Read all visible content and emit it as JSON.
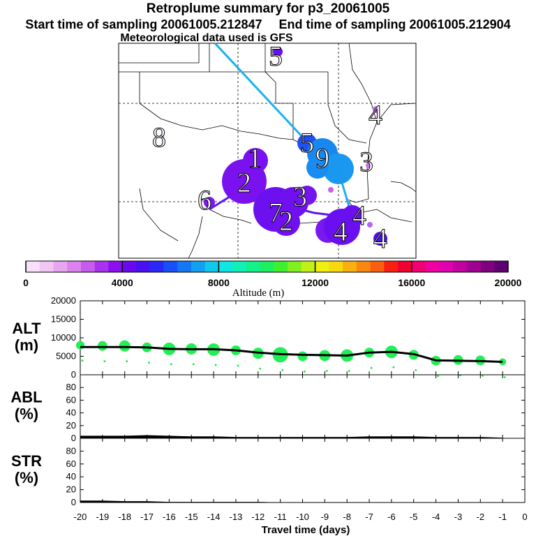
{
  "title": "Retroplume summary for p3_20061005",
  "start_label": "Start time of sampling 20061005.212847",
  "end_label": "End time of sampling 20061005.212904",
  "met_label": "Meteorological data used is GFS",
  "map": {
    "receptor_label": "5",
    "day_labels": [
      "1",
      "2",
      "3",
      "4",
      "5",
      "6",
      "7",
      "8",
      "9",
      "4",
      "4",
      "4",
      "3",
      "2"
    ]
  },
  "colorbar": {
    "xlabel": "Altitude (m)",
    "min": 0,
    "max": 20000,
    "tick_labels": [
      "0",
      "4000",
      "8000",
      "12000",
      "16000",
      "20000"
    ],
    "colors": [
      "#f8e0f8",
      "#f2c6f4",
      "#e8a6f0",
      "#dc82ee",
      "#c85aee",
      "#a832f0",
      "#8a10f0",
      "#6a08f2",
      "#4a10f4",
      "#2a28f8",
      "#1850f8",
      "#1478f4",
      "#12a0f0",
      "#10c8ec",
      "#10e6e4",
      "#12f0b8",
      "#14f08a",
      "#1cf060",
      "#40f030",
      "#80f020",
      "#c0f018",
      "#f0f010",
      "#f8d810",
      "#f8b010",
      "#f88810",
      "#f86010",
      "#f82010",
      "#f00030",
      "#f00070",
      "#f000a0",
      "#e000b0",
      "#c000a0",
      "#a00090",
      "#800080",
      "#600070"
    ]
  },
  "chart_data": [
    {
      "type": "scatter",
      "panel": "ALT",
      "ylabel": "ALT\n(m)",
      "ylabel_lines": [
        "ALT",
        "(m)"
      ],
      "xlim": [
        -20,
        0
      ],
      "ylim": [
        0,
        20000
      ],
      "yticks": [
        "0",
        "5000",
        "10000",
        "15000",
        "20000"
      ],
      "series": [
        {
          "name": "median altitude",
          "x": [
            -20,
            -19,
            -18,
            -17,
            -16,
            -15,
            -14,
            -13,
            -12,
            -11,
            -10,
            -9,
            -8,
            -7,
            -6,
            -5,
            -4,
            -3,
            -2,
            -1
          ],
          "y": [
            7500,
            7500,
            7500,
            7400,
            7000,
            6900,
            6900,
            6600,
            6000,
            5600,
            5400,
            5300,
            5200,
            6000,
            6200,
            5600,
            3900,
            3800,
            3700,
            3500
          ]
        },
        {
          "name": "particle clusters",
          "x": [
            -20,
            -19,
            -18,
            -17,
            -16,
            -15,
            -14,
            -13,
            -12,
            -11,
            -10,
            -9,
            -8,
            -7,
            -6,
            -5,
            -4,
            -3,
            -2,
            -1
          ],
          "y": [
            8000,
            7800,
            7800,
            7400,
            7000,
            7000,
            6800,
            6600,
            5800,
            5400,
            5000,
            5200,
            5200,
            6000,
            6200,
            5400,
            3800,
            4000,
            3900,
            3500
          ],
          "size": [
            6,
            7,
            8,
            7,
            9,
            8,
            9,
            7,
            8,
            11,
            7,
            8,
            9,
            7,
            9,
            7,
            7,
            7,
            7,
            5
          ]
        }
      ]
    },
    {
      "type": "area",
      "panel": "ABL",
      "ylabel_lines": [
        "ABL",
        "(%)"
      ],
      "xlim": [
        -20,
        0
      ],
      "ylim": [
        0,
        100
      ],
      "yticks": [
        "0",
        "20",
        "40",
        "60",
        "80"
      ],
      "x": [
        -20,
        -19,
        -18,
        -17,
        -16,
        -15,
        -14,
        -13,
        -12,
        -11,
        -10,
        -9,
        -8,
        -7,
        -6,
        -5,
        -4,
        -3,
        -2,
        -1
      ],
      "values": [
        4,
        4,
        4,
        5,
        4,
        3,
        3,
        2,
        2,
        2,
        2,
        2,
        2,
        3,
        3,
        3,
        2,
        2,
        2,
        1
      ]
    },
    {
      "type": "area",
      "panel": "STR",
      "ylabel_lines": [
        "STR",
        "(%)"
      ],
      "xlim": [
        -20,
        0
      ],
      "ylim": [
        0,
        100
      ],
      "yticks": [
        "0",
        "20",
        "40",
        "60",
        "80"
      ],
      "x": [
        -20,
        -19,
        -18,
        -17,
        -16,
        -15,
        -14,
        -13,
        -12,
        -11,
        -10,
        -9,
        -8,
        -7,
        -6,
        -5,
        -4,
        -3,
        -2,
        -1
      ],
      "values": [
        3,
        3,
        2,
        2,
        1,
        1,
        1,
        1,
        1,
        0,
        0,
        0,
        0,
        0,
        0,
        0,
        0,
        0,
        0,
        0
      ]
    }
  ],
  "xaxis": {
    "label": "Travel time (days)",
    "tick_labels": [
      "-20",
      "-19",
      "-18",
      "-17",
      "-16",
      "-15",
      "-14",
      "-13",
      "-12",
      "-11",
      "-10",
      "-9",
      "-8",
      "-7",
      "-6",
      "-5",
      "-4",
      "-3",
      "-2",
      "-1",
      "0"
    ]
  }
}
